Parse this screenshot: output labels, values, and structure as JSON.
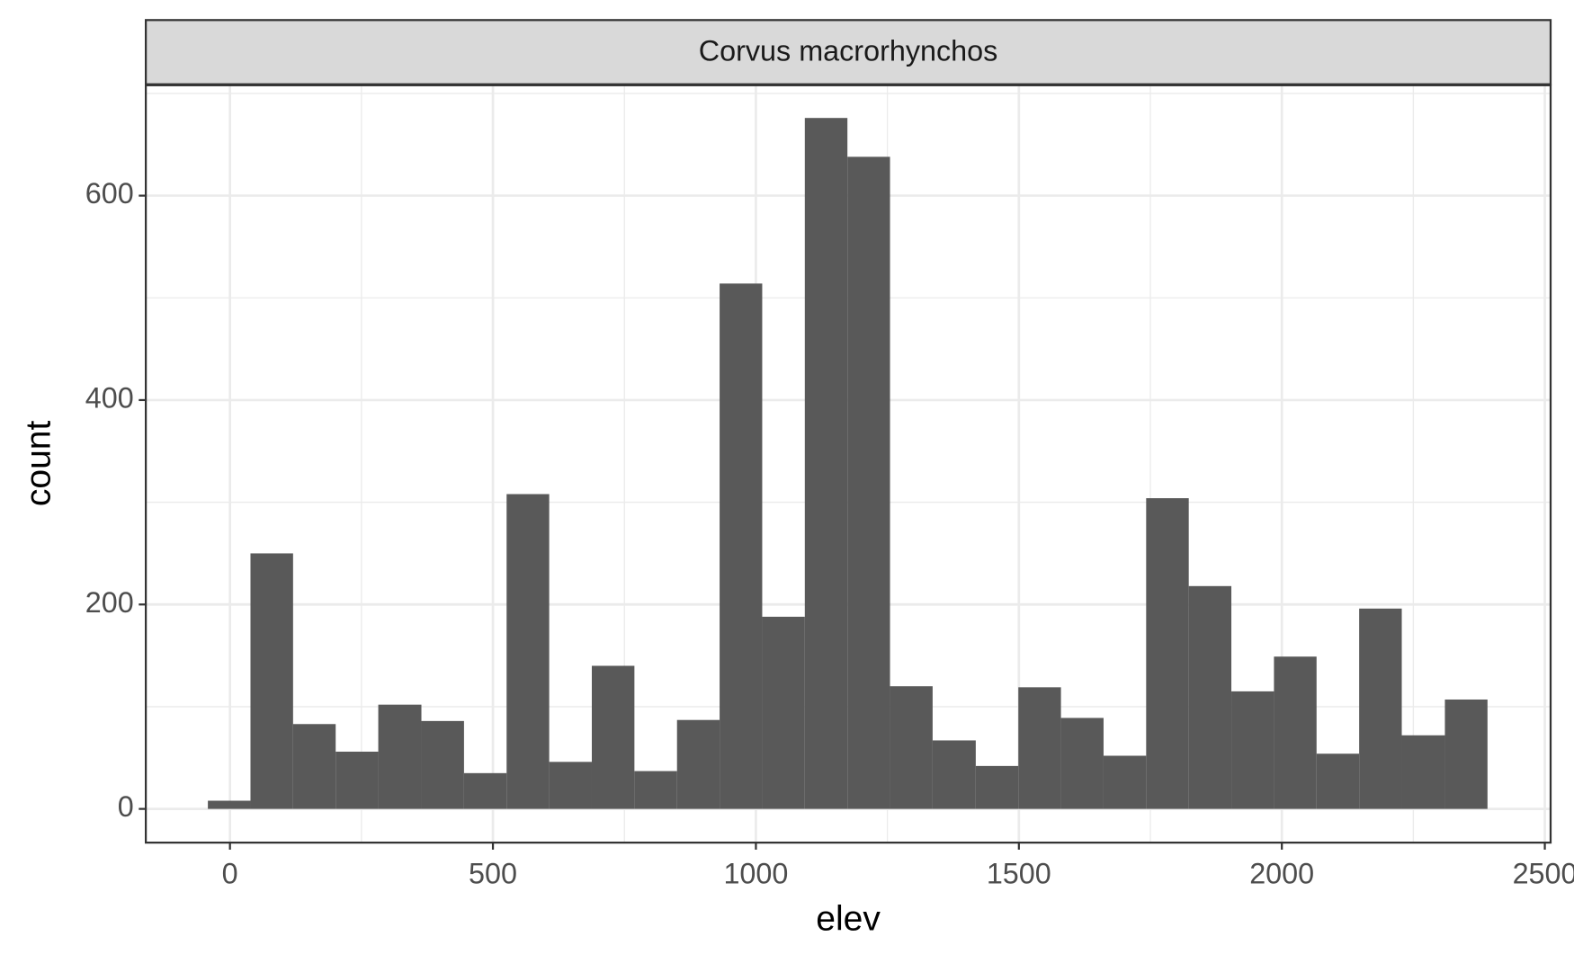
{
  "chart_data": {
    "type": "histogram",
    "strip_title": "Corvus macrorhynchos",
    "x_label": "elev",
    "y_label": "count",
    "bins": [
      -42,
      39,
      120,
      201,
      282,
      364,
      445,
      526,
      607,
      688,
      769,
      850,
      931,
      1012,
      1093,
      1174,
      1255,
      1336,
      1418,
      1499,
      1580,
      1661,
      1742,
      1823,
      1904,
      1985,
      2066,
      2147,
      2228,
      2310,
      2391
    ],
    "values": [
      8,
      250,
      83,
      56,
      102,
      86,
      35,
      308,
      46,
      140,
      37,
      87,
      514,
      188,
      676,
      638,
      120,
      67,
      42,
      119,
      89,
      52,
      304,
      218,
      115,
      149,
      54,
      196,
      72,
      107
    ],
    "color": "#595959",
    "xlim": [
      -160,
      2511
    ],
    "xticks": [
      0,
      500,
      1000,
      1500,
      2000,
      2500
    ],
    "ylim": [
      -33,
      708
    ],
    "yticks": [
      0,
      200,
      400,
      600
    ],
    "grid": true
  }
}
